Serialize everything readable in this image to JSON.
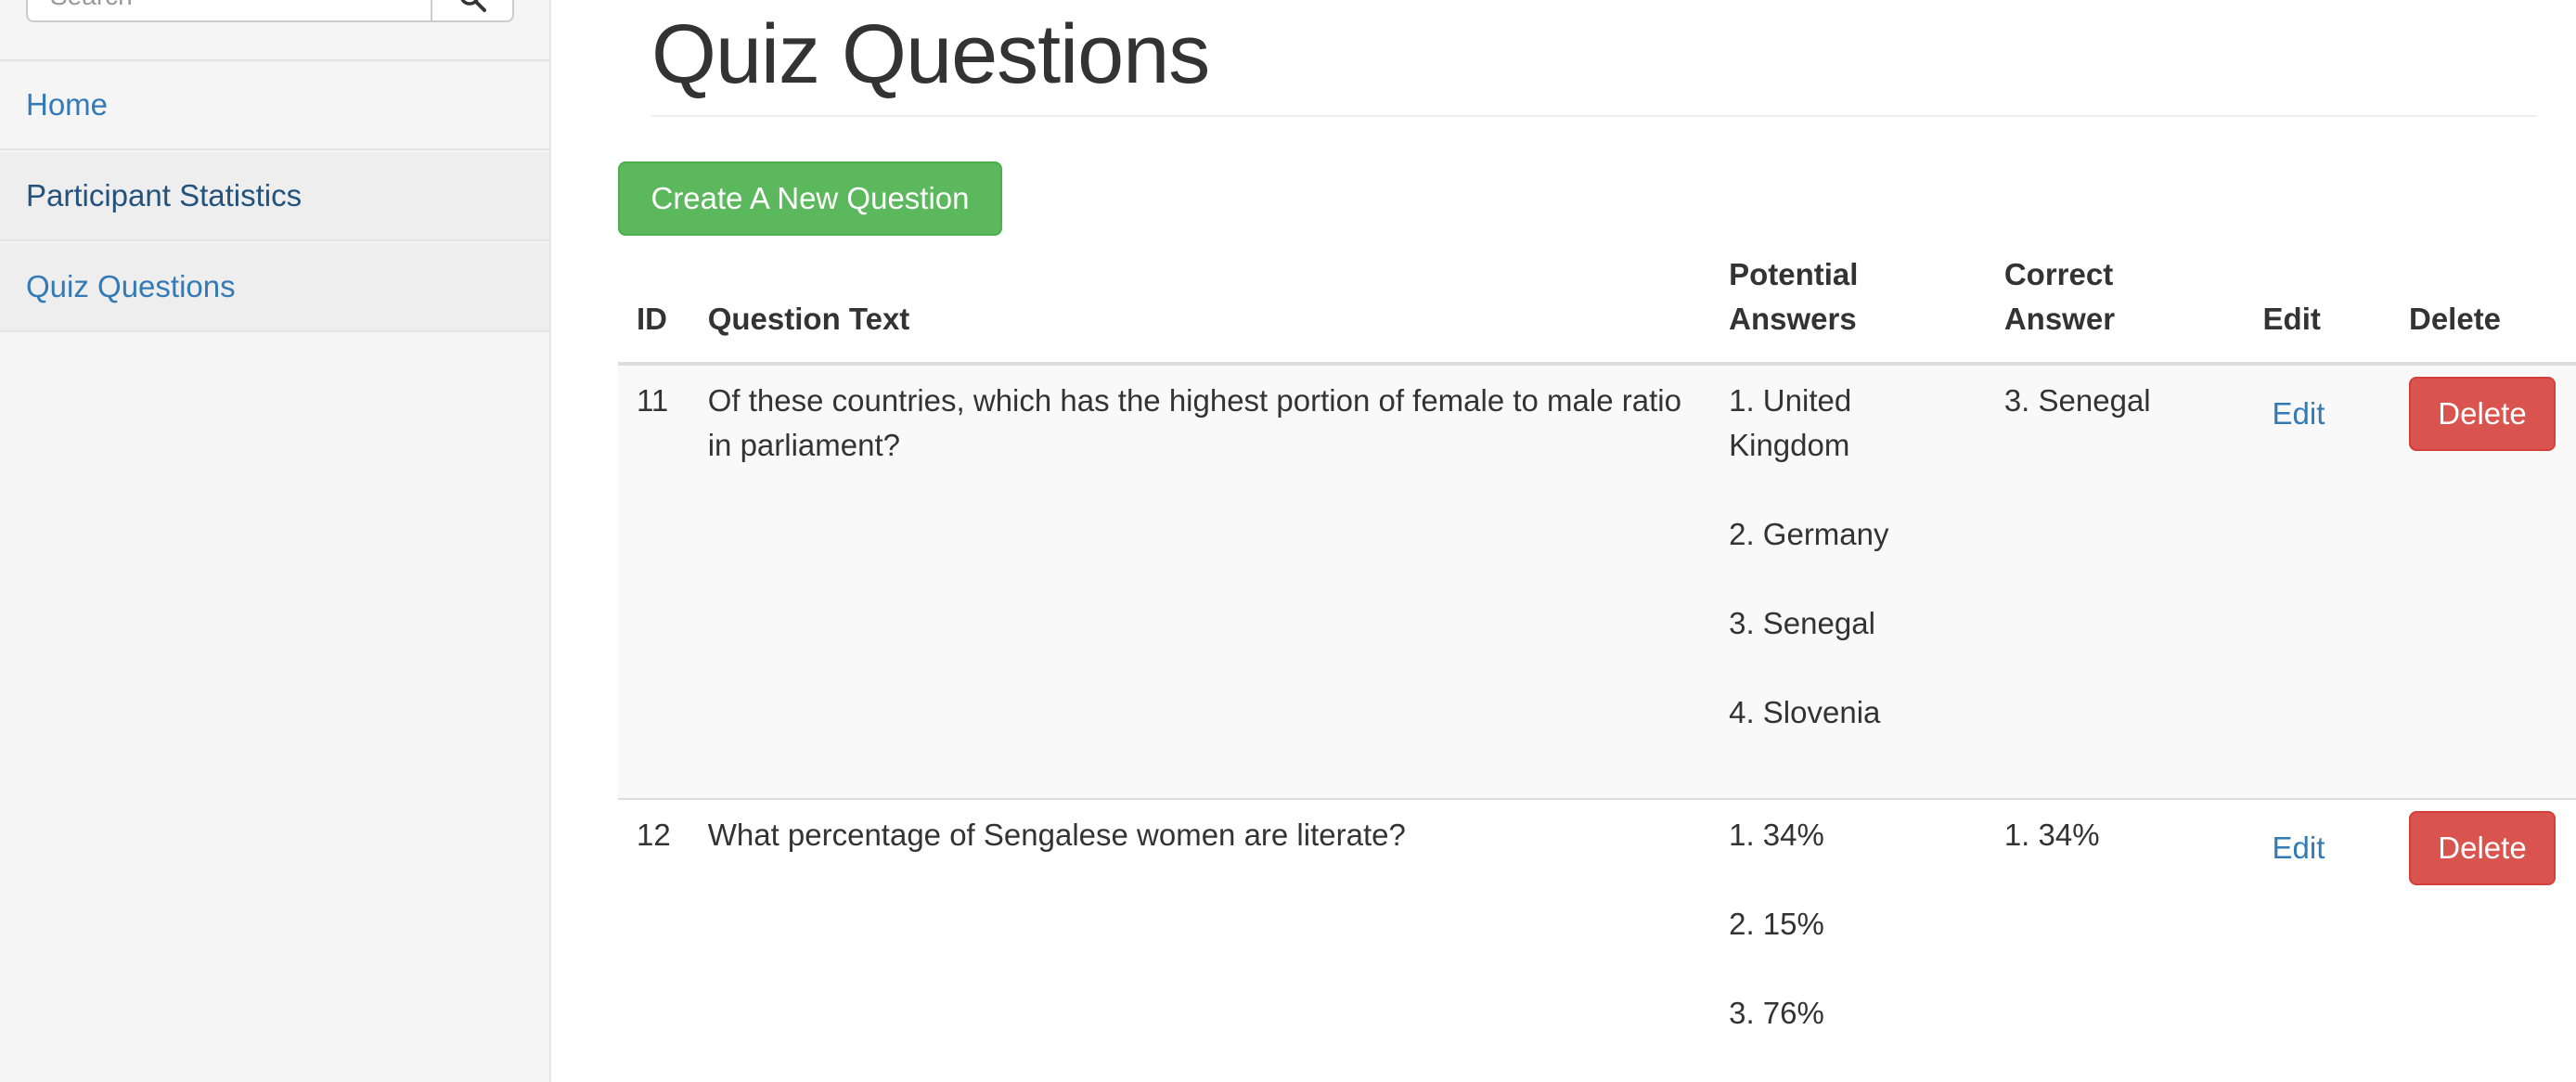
{
  "sidebar": {
    "search": {
      "placeholder": "Search"
    },
    "items": [
      {
        "label": "Home"
      },
      {
        "label": "Participant Statistics"
      },
      {
        "label": "Quiz Questions"
      }
    ]
  },
  "main": {
    "title": "Quiz Questions",
    "create_button": "Create A New Question",
    "table": {
      "headers": {
        "id": "ID",
        "text": "Question Text",
        "answers_line1": "Potential",
        "answers_line2": "Answers",
        "correct_line1": "Correct",
        "correct_line2": "Answer",
        "edit": "Edit",
        "delete": "Delete"
      },
      "rows": [
        {
          "id": "11",
          "text": "Of these countries, which has the highest portion of female to male ratio in parliament?",
          "answers": [
            "1. United Kingdom",
            "2. Germany",
            "3. Senegal",
            "4. Slovenia"
          ],
          "correct": "3. Senegal",
          "edit_label": "Edit",
          "delete_label": "Delete"
        },
        {
          "id": "12",
          "text": "What percentage of Sengalese women are literate?",
          "answers": [
            "1. 34%",
            "2. 15%",
            "3. 76%"
          ],
          "correct": "1. 34%",
          "edit_label": "Edit",
          "delete_label": "Delete"
        }
      ]
    }
  },
  "colors": {
    "link": "#337ab7",
    "success": "#5cb85c",
    "danger": "#d9534f",
    "sidebar_bg": "#f5f5f5"
  },
  "icons": {
    "search_button": "search-icon"
  }
}
